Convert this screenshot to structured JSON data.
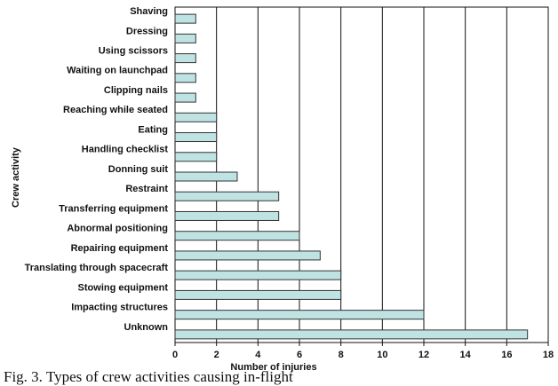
{
  "chart_data": {
    "type": "barh",
    "categories": [
      "Shaving",
      "Dressing",
      "Using scissors",
      "Waiting on launchpad",
      "Clipping nails",
      "Reaching while seated",
      "Eating",
      "Handling checklist",
      "Donning suit",
      "Restraint",
      "Transferring equipment",
      "Abnormal positioning",
      "Repairing equipment",
      "Translating through spacecraft",
      "Stowing equipment",
      "Impacting structures",
      "Unknown"
    ],
    "values": [
      1,
      1,
      1,
      1,
      1,
      2,
      2,
      2,
      3,
      5,
      5,
      6,
      7,
      8,
      8,
      12,
      17
    ],
    "color": "#bfe3e3",
    "x_label": "Number of injuries",
    "y_label": "Crew activity",
    "xlim": [
      0,
      18
    ],
    "xticks": [
      0,
      2,
      4,
      6,
      8,
      10,
      12,
      14,
      16,
      18
    ],
    "grid": true
  },
  "caption": "Fig. 3. Types of crew activities causing in-flight"
}
